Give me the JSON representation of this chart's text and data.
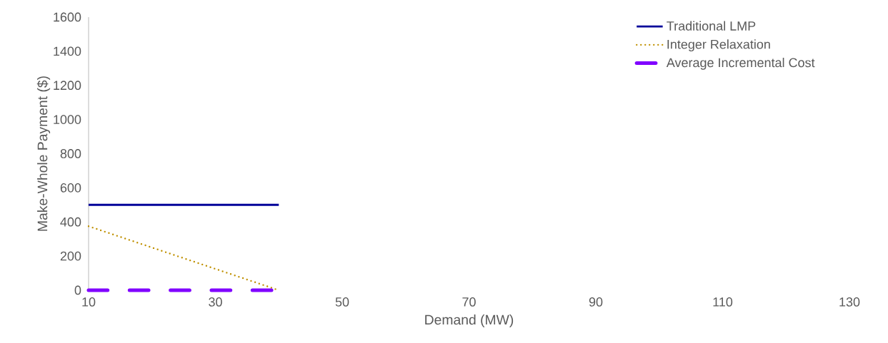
{
  "chart_data": {
    "type": "line",
    "xlabel": "Demand (MW)",
    "ylabel": "Make-Whole Payment ($)",
    "x": [
      10,
      40
    ],
    "series": [
      {
        "name": "Traditional LMP",
        "color": "#000099",
        "values": [
          500,
          500
        ],
        "line_style": "solid"
      },
      {
        "name": "Integer Relaxation",
        "color": "#bf9000",
        "values": [
          375,
          0
        ],
        "line_style": "dotted"
      },
      {
        "name": "Average Incremental Cost",
        "color": "#8000ff",
        "values": [
          0,
          0
        ],
        "line_style": "dashed"
      }
    ],
    "xlim": [
      10,
      130
    ],
    "xticks": [
      10,
      30,
      50,
      70,
      90,
      110,
      130
    ],
    "ylim": [
      0,
      1600
    ],
    "yticks": [
      0,
      200,
      400,
      600,
      800,
      1000,
      1200,
      1400,
      1600
    ],
    "grid": false,
    "legend": "top right",
    "marker": "none"
  }
}
